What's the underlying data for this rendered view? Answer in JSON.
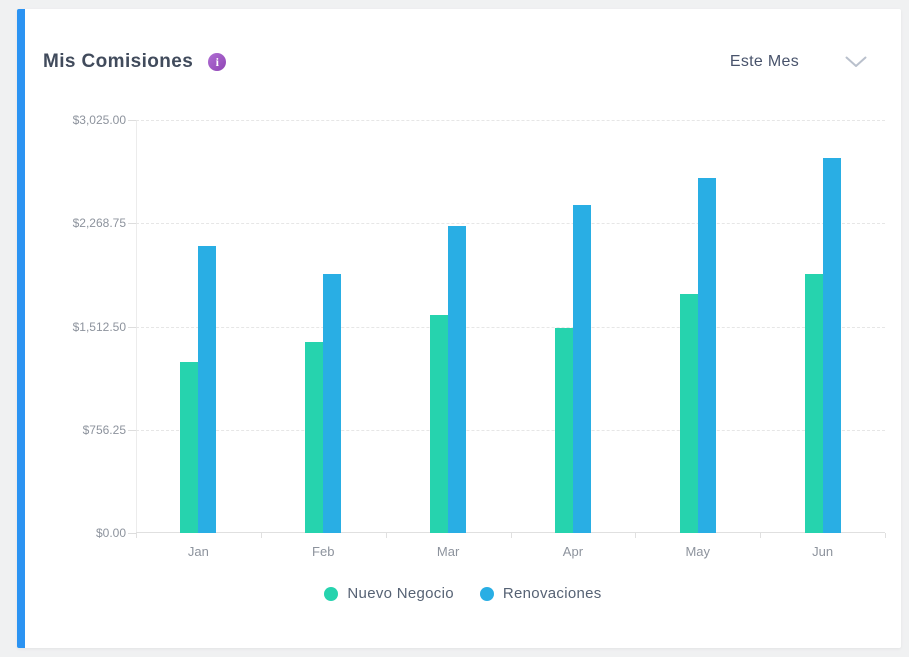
{
  "page": {
    "background_color": "#F0F1F2"
  },
  "card": {
    "accent_color": "#2B93F2"
  },
  "header": {
    "title": "Mis Comisiones",
    "info_icon": {
      "glyph": "i",
      "color": "#9C59B8"
    },
    "period_dropdown": {
      "value": "Este Mes"
    }
  },
  "chart_data": {
    "type": "bar",
    "title": "Mis Comisiones",
    "categories": [
      "Jan",
      "Feb",
      "Mar",
      "Apr",
      "May",
      "Jun"
    ],
    "series": [
      {
        "name": "Nuevo Negocio",
        "color": "#26D3AE",
        "values": [
          1250,
          1400,
          1600,
          1500,
          1750,
          1900
        ]
      },
      {
        "name": "Renovaciones",
        "color": "#29AEE4",
        "values": [
          2100,
          1900,
          2250,
          2400,
          2600,
          2750
        ]
      }
    ],
    "xlabel": "",
    "ylabel": "",
    "ylim": [
      0,
      3025
    ],
    "y_ticks": [
      {
        "value": 0,
        "label": "$0.00"
      },
      {
        "value": 756.25,
        "label": "$756.25"
      },
      {
        "value": 1512.5,
        "label": "$1,512.50"
      },
      {
        "value": 2268.75,
        "label": "$2,268.75"
      },
      {
        "value": 3025,
        "label": "$3,025.00"
      }
    ],
    "grid": "horizontal dashed",
    "legend_position": "bottom"
  }
}
